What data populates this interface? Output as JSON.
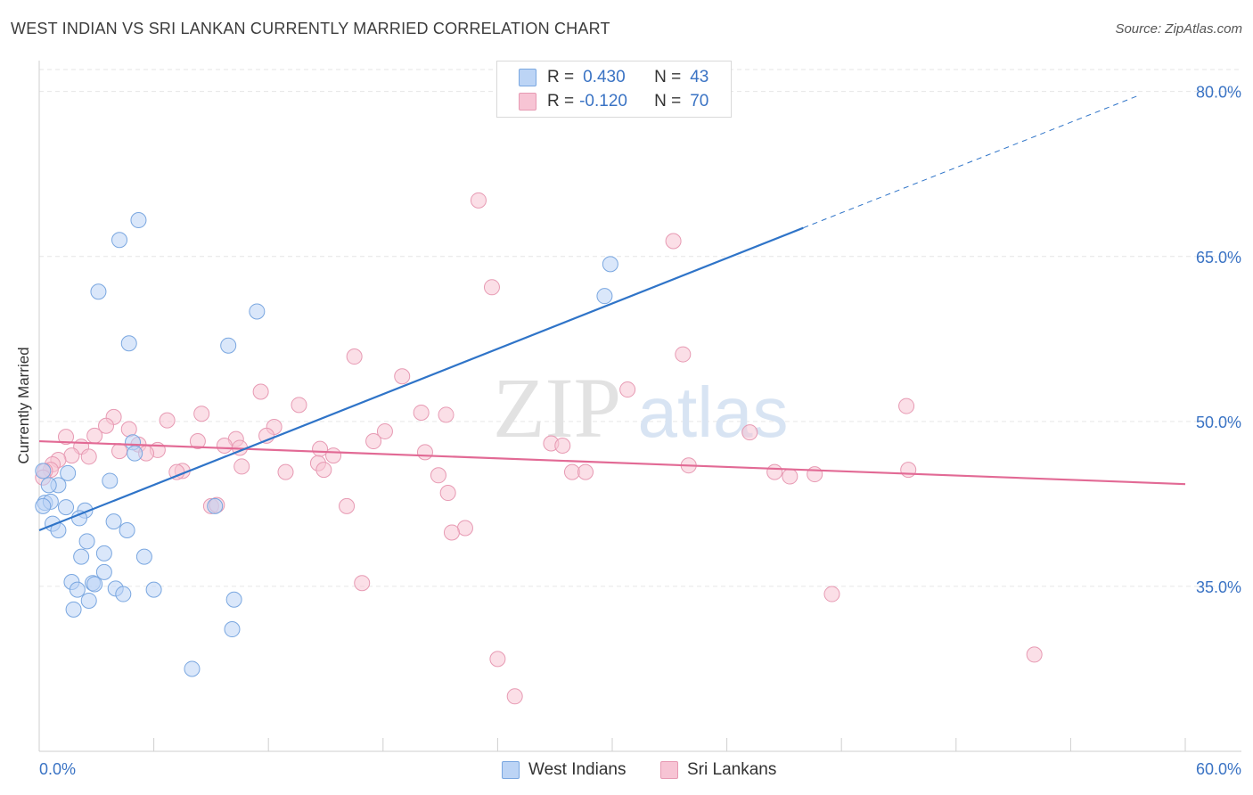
{
  "title": "WEST INDIAN VS SRI LANKAN CURRENTLY MARRIED CORRELATION CHART",
  "source": "Source: ZipAtlas.com",
  "watermark": {
    "zip": "ZIP",
    "atlas": "atlas"
  },
  "legend": {
    "rows": [
      {
        "r_label": "R =",
        "r_value": "0.430",
        "n_label": "N =",
        "n_value": "43"
      },
      {
        "r_label": "R =",
        "r_value": "-0.120",
        "n_label": "N =",
        "n_value": "70"
      }
    ]
  },
  "bottom_legend": {
    "west_indians": "West Indians",
    "sri_lankans": "Sri Lankans"
  },
  "colors": {
    "blue_fill": "#bcd4f5",
    "blue_stroke": "#7aa7e0",
    "blue_line": "#2f74c8",
    "pink_fill": "#f7c4d4",
    "pink_stroke": "#e79ab3",
    "pink_line": "#e26a95",
    "axis_text": "#3a73c4",
    "grid": "#e6e6e6"
  },
  "chart_data": {
    "type": "scatter",
    "title": "WEST INDIAN VS SRI LANKAN CURRENTLY MARRIED CORRELATION CHART",
    "xlabel": "",
    "ylabel": "Currently Married",
    "xlim": [
      0,
      60
    ],
    "ylim": [
      20,
      82
    ],
    "x_tick_labels": [
      "0.0%",
      "60.0%"
    ],
    "y_ticks": [
      35,
      50,
      65,
      80
    ],
    "y_tick_labels": [
      "35.0%",
      "50.0%",
      "65.0%",
      "80.0%"
    ],
    "series": [
      {
        "name": "West Indians",
        "r": 0.43,
        "n": 43,
        "trend": {
          "x0": 0,
          "y0": 40.1,
          "x1": 40,
          "y1": 67.6,
          "dash_to_x": 57.5,
          "dash_to_y": 79.6
        },
        "points": [
          [
            5.2,
            68.3
          ],
          [
            4.2,
            66.5
          ],
          [
            3.1,
            61.8
          ],
          [
            11.4,
            60.0
          ],
          [
            4.7,
            57.1
          ],
          [
            9.9,
            56.9
          ],
          [
            29.9,
            64.3
          ],
          [
            29.6,
            61.4
          ],
          [
            4.9,
            48.1
          ],
          [
            5.0,
            47.1
          ],
          [
            1.5,
            45.3
          ],
          [
            1.0,
            44.2
          ],
          [
            0.5,
            44.2
          ],
          [
            3.7,
            44.6
          ],
          [
            0.3,
            42.6
          ],
          [
            0.6,
            42.7
          ],
          [
            0.2,
            42.3
          ],
          [
            1.4,
            42.2
          ],
          [
            2.4,
            41.9
          ],
          [
            2.1,
            41.2
          ],
          [
            3.9,
            40.9
          ],
          [
            0.7,
            40.7
          ],
          [
            1.0,
            40.1
          ],
          [
            4.6,
            40.1
          ],
          [
            2.5,
            39.1
          ],
          [
            3.4,
            38.0
          ],
          [
            2.2,
            37.7
          ],
          [
            5.5,
            37.7
          ],
          [
            3.4,
            36.3
          ],
          [
            1.7,
            35.4
          ],
          [
            2.8,
            35.3
          ],
          [
            2.9,
            35.2
          ],
          [
            2.0,
            34.7
          ],
          [
            4.0,
            34.8
          ],
          [
            4.4,
            34.3
          ],
          [
            6.0,
            34.7
          ],
          [
            10.2,
            33.8
          ],
          [
            2.6,
            33.7
          ],
          [
            1.8,
            32.9
          ],
          [
            9.2,
            42.3
          ],
          [
            10.1,
            31.1
          ],
          [
            8.0,
            27.5
          ],
          [
            0.2,
            45.5
          ]
        ]
      },
      {
        "name": "Sri Lankans",
        "r": -0.12,
        "n": 70,
        "trend": {
          "x0": 0,
          "y0": 48.2,
          "x1": 60,
          "y1": 44.3
        },
        "points": [
          [
            23.0,
            70.1
          ],
          [
            33.2,
            66.4
          ],
          [
            23.7,
            62.2
          ],
          [
            33.7,
            56.1
          ],
          [
            16.5,
            55.9
          ],
          [
            19.0,
            54.1
          ],
          [
            30.8,
            52.9
          ],
          [
            11.6,
            52.7
          ],
          [
            13.6,
            51.5
          ],
          [
            45.4,
            51.4
          ],
          [
            8.5,
            50.7
          ],
          [
            20.0,
            50.8
          ],
          [
            21.3,
            50.6
          ],
          [
            3.9,
            50.4
          ],
          [
            6.7,
            50.1
          ],
          [
            3.5,
            49.6
          ],
          [
            4.7,
            49.3
          ],
          [
            12.3,
            49.5
          ],
          [
            18.1,
            49.1
          ],
          [
            11.9,
            48.7
          ],
          [
            37.2,
            49.0
          ],
          [
            1.4,
            48.6
          ],
          [
            2.9,
            48.7
          ],
          [
            10.3,
            48.4
          ],
          [
            8.3,
            48.2
          ],
          [
            17.5,
            48.2
          ],
          [
            26.8,
            48.0
          ],
          [
            27.4,
            47.8
          ],
          [
            2.2,
            47.7
          ],
          [
            5.2,
            47.9
          ],
          [
            9.7,
            47.8
          ],
          [
            14.7,
            47.5
          ],
          [
            4.2,
            47.3
          ],
          [
            6.2,
            47.4
          ],
          [
            20.2,
            47.2
          ],
          [
            10.5,
            47.6
          ],
          [
            5.6,
            47.1
          ],
          [
            1.7,
            46.9
          ],
          [
            15.4,
            46.9
          ],
          [
            2.6,
            46.8
          ],
          [
            1.0,
            46.5
          ],
          [
            0.7,
            46.1
          ],
          [
            0.6,
            45.6
          ],
          [
            7.5,
            45.5
          ],
          [
            7.2,
            45.4
          ],
          [
            10.6,
            45.9
          ],
          [
            14.6,
            46.2
          ],
          [
            14.9,
            45.6
          ],
          [
            12.9,
            45.4
          ],
          [
            20.9,
            45.1
          ],
          [
            27.9,
            45.4
          ],
          [
            28.6,
            45.4
          ],
          [
            34.0,
            46.0
          ],
          [
            38.5,
            45.4
          ],
          [
            39.3,
            45.0
          ],
          [
            40.6,
            45.2
          ],
          [
            45.5,
            45.6
          ],
          [
            21.4,
            43.5
          ],
          [
            16.1,
            42.3
          ],
          [
            9.0,
            42.3
          ],
          [
            9.3,
            42.4
          ],
          [
            22.3,
            40.3
          ],
          [
            21.6,
            39.9
          ],
          [
            16.9,
            35.3
          ],
          [
            41.5,
            34.3
          ],
          [
            24.0,
            28.4
          ],
          [
            52.1,
            28.8
          ],
          [
            24.9,
            25.0
          ],
          [
            0.3,
            45.5
          ],
          [
            0.2,
            44.9
          ]
        ]
      }
    ]
  }
}
